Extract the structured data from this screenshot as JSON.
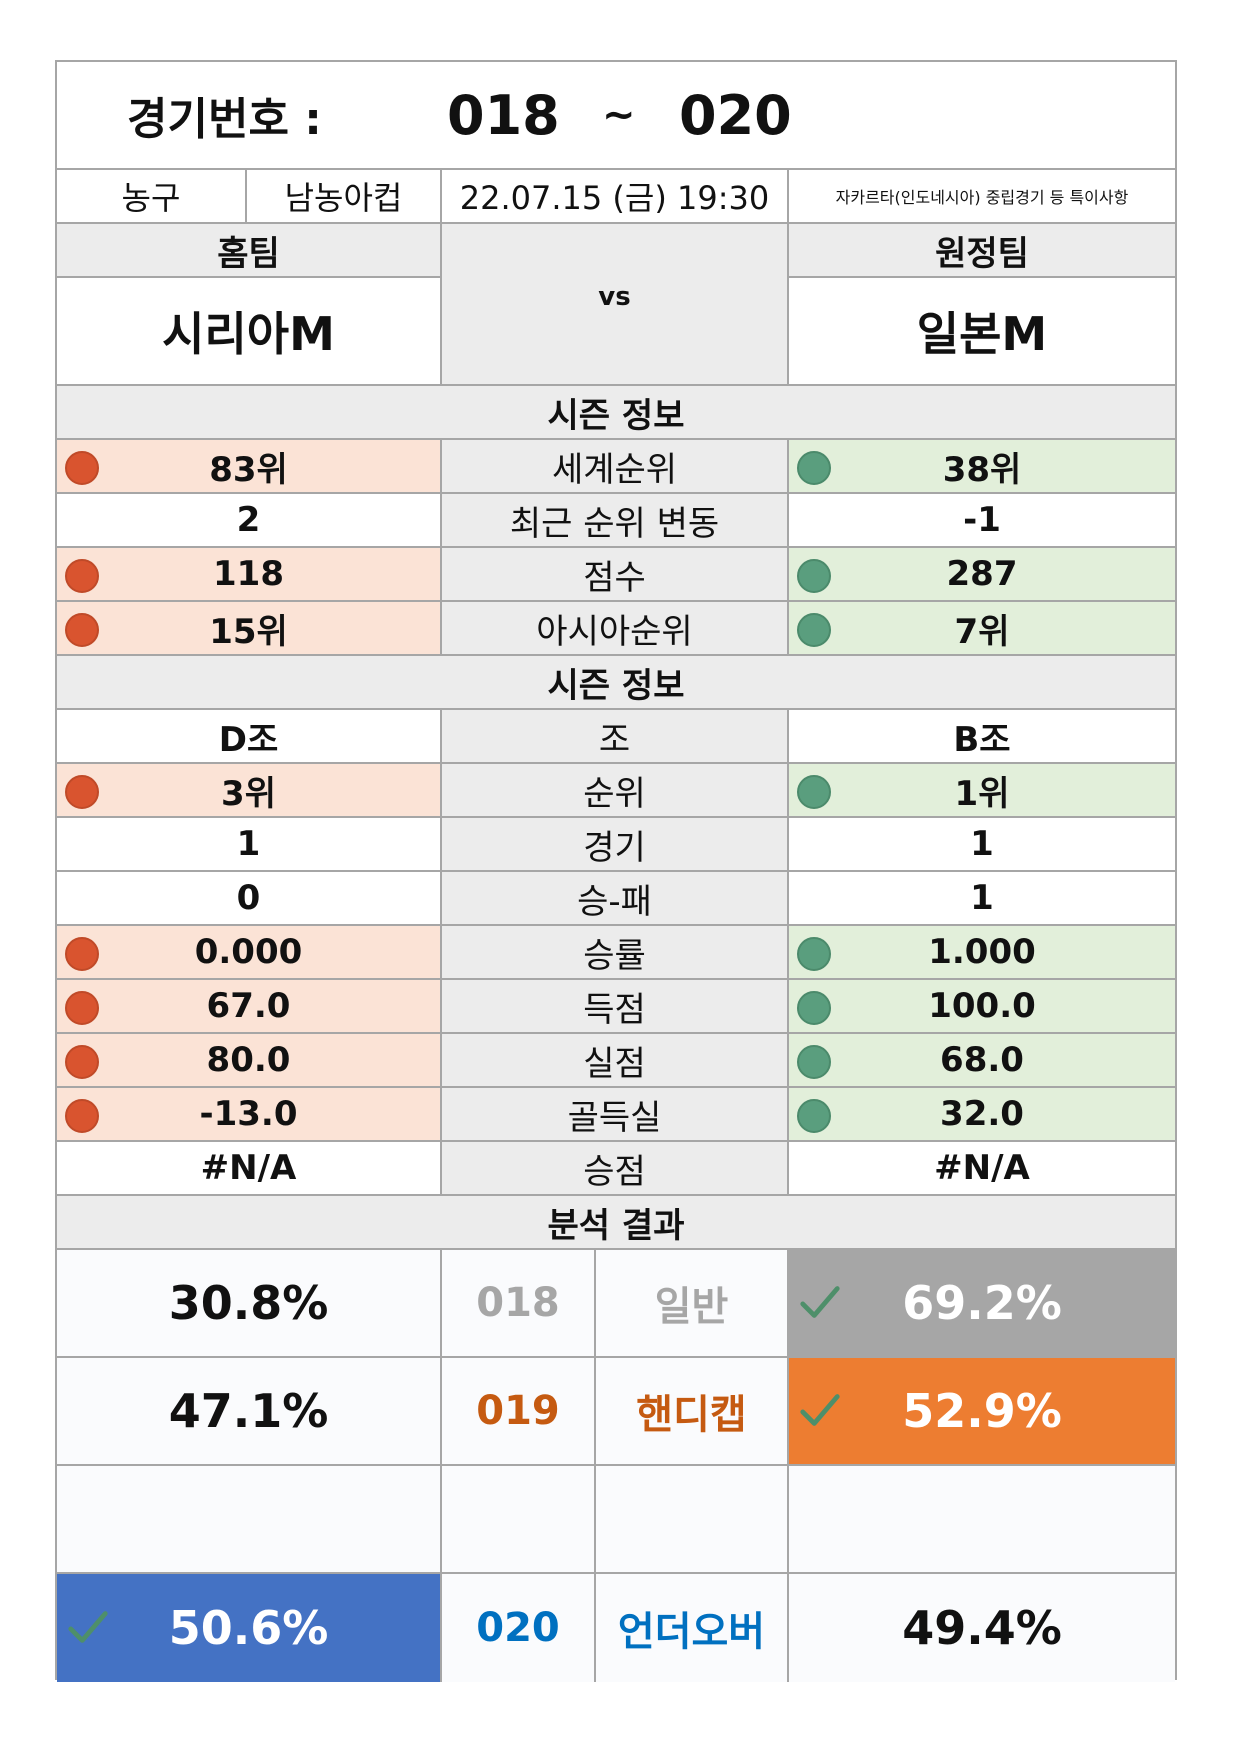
{
  "header": {
    "label": "경기번호 :",
    "from": "018",
    "sep": "~",
    "to": "020"
  },
  "info": {
    "sport": "농구",
    "league": "남농아컵",
    "datetime": "22.07.15 (금) 19:30",
    "note": "자카르타(인도네시아) 중립경기 등 특이사항"
  },
  "teams": {
    "home_label": "홈팀",
    "away_label": "원정팀",
    "home": "시리아M",
    "away": "일본M",
    "vs": "vs"
  },
  "season_title": "시즌 정보",
  "season_rows": [
    {
      "home": "83위",
      "label": "세계순위",
      "away": "38위",
      "hl": true
    },
    {
      "home": "2",
      "label": "최근 순위 변동",
      "away": "-1",
      "hl": false
    },
    {
      "home": "118",
      "label": "점수",
      "away": "287",
      "hl": true
    },
    {
      "home": "15위",
      "label": "아시아순위",
      "away": "7위",
      "hl": true
    }
  ],
  "group_title": "시즌 정보",
  "group_rows": [
    {
      "home": "D조",
      "label": "조",
      "away": "B조",
      "hl": false
    },
    {
      "home": "3위",
      "label": "순위",
      "away": "1위",
      "hl": true
    },
    {
      "home": "1",
      "label": "경기",
      "away": "1",
      "hl": false
    },
    {
      "home": "0",
      "label": "승-패",
      "away": "1",
      "hl": false
    },
    {
      "home": "0.000",
      "label": "승률",
      "away": "1.000",
      "hl": true
    },
    {
      "home": "67.0",
      "label": "득점",
      "away": "100.0",
      "hl": true
    },
    {
      "home": "80.0",
      "label": "실점",
      "away": "68.0",
      "hl": true
    },
    {
      "home": "-13.0",
      "label": "골득실",
      "away": "32.0",
      "hl": true
    },
    {
      "home": "#N/A",
      "label": "승점",
      "away": "#N/A",
      "hl": false
    }
  ],
  "analysis_title": "분석 결과",
  "analysis": [
    {
      "home": "30.8%",
      "code": "018",
      "type": "일반",
      "away": "69.2%",
      "pick": "away",
      "color": "#a6a6a6",
      "text_color": "#a6a6a6"
    },
    {
      "home": "47.1%",
      "code": "019",
      "type": "핸디캡",
      "away": "52.9%",
      "pick": "away",
      "color": "#ed7d31",
      "text_color": "#c55a11"
    },
    {
      "home": "",
      "code": "",
      "type": "",
      "away": "",
      "pick": "none",
      "color": "#ffffff",
      "text_color": "#111111"
    },
    {
      "home": "50.6%",
      "code": "020",
      "type": "언더오버",
      "away": "49.4%",
      "pick": "home",
      "color": "#4472c4",
      "text_color": "#0070c0"
    }
  ],
  "colors": {
    "border": "#a6a6a6",
    "home_highlight": "#fbe3d6",
    "away_highlight": "#e2efda",
    "home_dot": "#d9542f",
    "away_dot": "#5a9e7e",
    "check": "#4e8f6a"
  }
}
